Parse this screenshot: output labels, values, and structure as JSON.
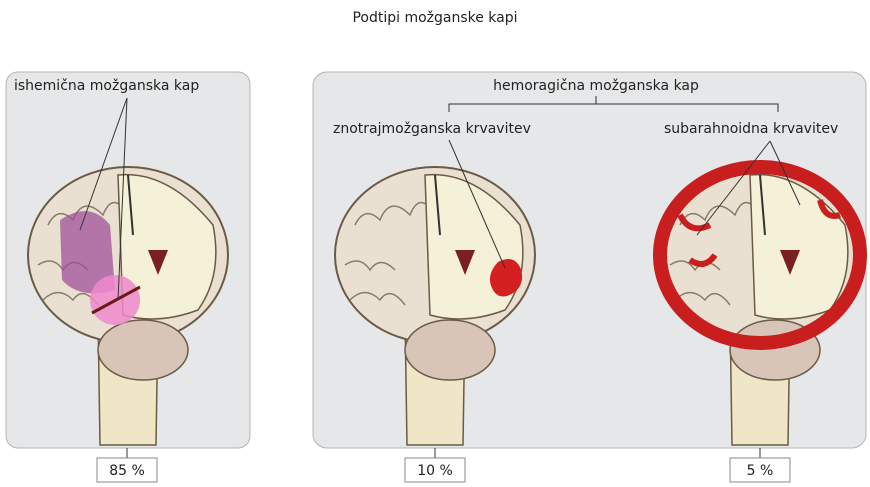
{
  "title": "Podtipi možganske kapi",
  "ischemic": {
    "label": "ishemična možganska kap",
    "percent": "85 %"
  },
  "hemorrhagic": {
    "label": "hemoragična možganska kap",
    "subtypes": [
      {
        "label": "znotrajmožganska krvavitev",
        "percent": "10 %"
      },
      {
        "label": "subarahnoidna krvavitev",
        "percent": "5 %"
      }
    ]
  }
}
